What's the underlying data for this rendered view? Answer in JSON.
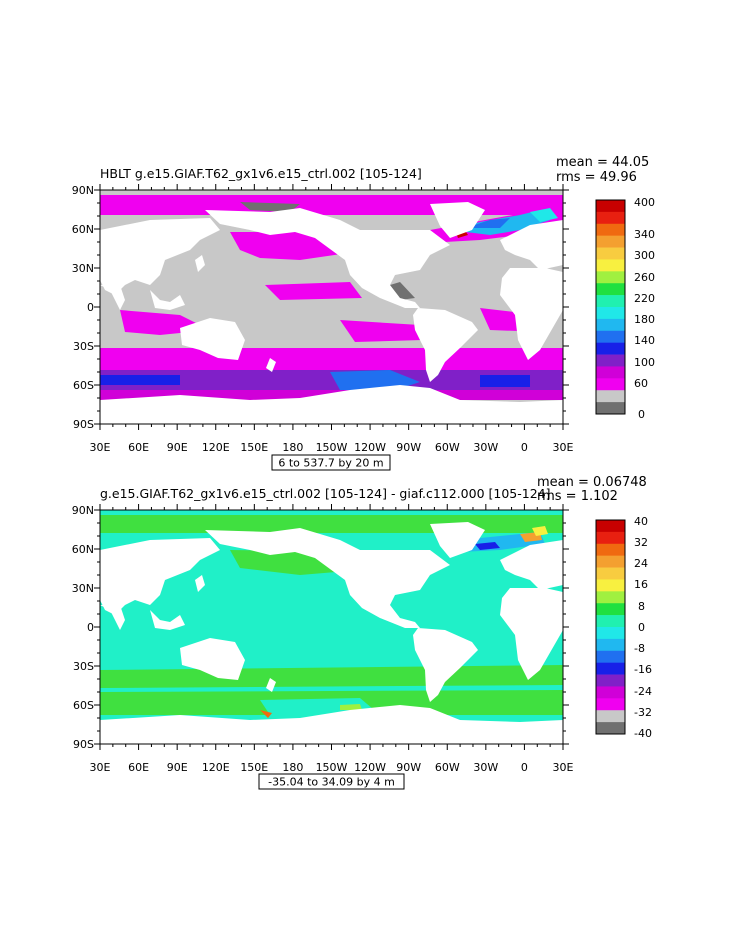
{
  "panels": [
    {
      "title": "HBLT g.e15.GIAF.T62_gx1v6.e15_ctrl.002 [105-124]",
      "stats": {
        "mean": "mean = 44.05",
        "rms": "rms = 49.96"
      },
      "range_box": "6 to 537.7 by 20 m",
      "colorbar": {
        "labels": [
          "400",
          "340",
          "300",
          "260",
          "220",
          "180",
          "140",
          "100",
          "60",
          "0"
        ],
        "colors": [
          "#c80000",
          "#e82010",
          "#f06a10",
          "#f4a030",
          "#f8cc40",
          "#f8f040",
          "#a0f040",
          "#20e040",
          "#20f0b0",
          "#20e8e8",
          "#20b8f0",
          "#2070f0",
          "#1820e8",
          "#8020c8",
          "#d000d8",
          "#f000f0",
          "#c8c8c8",
          "#707070"
        ]
      }
    },
    {
      "title": "g.e15.GIAF.T62_gx1v6.e15_ctrl.002 [105-124] - giaf.c112.000 [105-124]",
      "stats": {
        "mean": "mean = 0.06748",
        "rms": "rms = 1.102"
      },
      "range_box": "-35.04 to 34.09 by 4 m",
      "colorbar": {
        "labels": [
          "40",
          "32",
          "24",
          "16",
          "8",
          "0",
          "-8",
          "-16",
          "-24",
          "-32",
          "-40"
        ],
        "colors": [
          "#c80000",
          "#e82010",
          "#f06a10",
          "#f4a030",
          "#f8cc40",
          "#f8f040",
          "#a0f040",
          "#20e040",
          "#20f0b0",
          "#20e8e8",
          "#20b8f0",
          "#2070f0",
          "#1820e8",
          "#8020c8",
          "#d000d8",
          "#f000f0",
          "#c8c8c8",
          "#707070"
        ]
      }
    }
  ],
  "axes": {
    "lat_labels": [
      "90N",
      "60N",
      "30N",
      "0",
      "30S",
      "60S",
      "90S"
    ],
    "lon_labels": [
      "30E",
      "60E",
      "90E",
      "120E",
      "150E",
      "180",
      "150W",
      "120W",
      "90W",
      "60W",
      "30W",
      "0",
      "30E"
    ]
  }
}
